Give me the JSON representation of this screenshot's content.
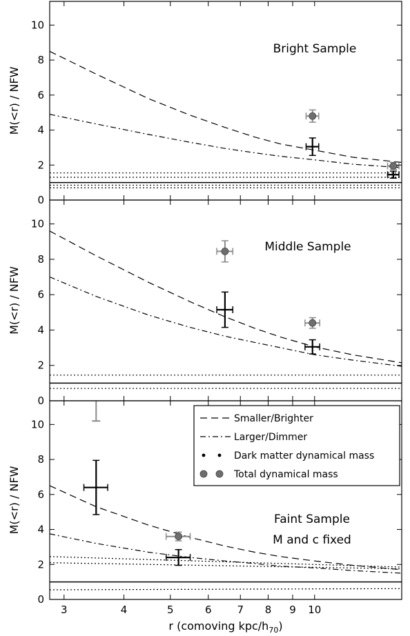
{
  "figure": {
    "xlabel_prefix": "r (comoving kpc/h",
    "xlabel_sub": "70",
    "xlabel_suffix": ")",
    "xscale": "log",
    "xlim": [
      2.8,
      15.2
    ],
    "xticks": [
      {
        "value": 3,
        "label": "3"
      },
      {
        "value": 4,
        "label": "4"
      },
      {
        "value": 5,
        "label": "5"
      },
      {
        "value": 6,
        "label": "6"
      },
      {
        "value": 7,
        "label": "7"
      },
      {
        "value": 8,
        "label": "8"
      },
      {
        "value": 9,
        "label": "9"
      },
      {
        "value": 10,
        "label": "10"
      }
    ]
  },
  "legend": {
    "placement": "top-right",
    "panel": 2,
    "entries": [
      {
        "label": "Smaller/Brighter",
        "style": "dashed"
      },
      {
        "label": "Larger/Dimmer",
        "style": "dashdot"
      },
      {
        "label": "Dark matter dynamical mass",
        "style": "black-cross"
      },
      {
        "label": "Total dynamical mass",
        "style": "gray-circle"
      }
    ]
  },
  "colors": {
    "dark_matter": "#000000",
    "total": "#6e6e6e",
    "total_error": "#8a8a8a"
  },
  "chart_data": [
    {
      "type": "scatter",
      "panel": "bright",
      "title": "Bright Sample",
      "subtitle": "",
      "ylabel": "M(<r) / NFW",
      "ylim": [
        0,
        11
      ],
      "yticks": [
        0,
        2,
        4,
        6,
        8,
        10
      ],
      "curves": {
        "smaller_brighter": {
          "style": "dashed",
          "x": [
            2.8,
            3.5,
            4.5,
            5.5,
            6.5,
            7.5,
            8.5,
            10,
            12,
            15.2
          ],
          "y": [
            8.5,
            7.2,
            5.8,
            4.85,
            4.15,
            3.6,
            3.2,
            2.85,
            2.45,
            2.15
          ]
        },
        "larger_dimmer": {
          "style": "dashdot",
          "x": [
            2.8,
            3.5,
            4.5,
            5.5,
            6.5,
            7.5,
            8.5,
            10,
            12,
            15.2
          ],
          "y": [
            4.9,
            4.35,
            3.75,
            3.3,
            2.95,
            2.7,
            2.5,
            2.3,
            2.05,
            1.85
          ]
        }
      },
      "reference_lines": [
        {
          "style": "solid",
          "y": 1.0
        },
        {
          "style": "dotted",
          "y": [
            1.55,
            1.55
          ]
        },
        {
          "style": "dotted",
          "y": [
            1.3,
            1.3
          ]
        },
        {
          "style": "dotted",
          "y": [
            0.85,
            0.85
          ]
        },
        {
          "style": "dotted",
          "y": [
            0.7,
            0.7
          ]
        }
      ],
      "dark_matter": [
        {
          "x": 9.9,
          "y": 3.05,
          "xerr": 0.3,
          "yerr": 0.5
        },
        {
          "x": 14.6,
          "y": 1.45,
          "xerr": 0.4,
          "yerr": 0.2
        }
      ],
      "total": [
        {
          "x": 9.9,
          "y": 4.8,
          "xerr": 0.3,
          "yerr": 0.35
        },
        {
          "x": 14.6,
          "y": 1.95,
          "xerr": 0.4,
          "yerr": 0.2
        }
      ]
    },
    {
      "type": "scatter",
      "panel": "middle",
      "title": "Middle Sample",
      "subtitle": "",
      "ylabel": "M(<r) / NFW",
      "ylim": [
        0,
        11
      ],
      "yticks": [
        0,
        2,
        4,
        6,
        8,
        10
      ],
      "curves": {
        "smaller_brighter": {
          "style": "dashed",
          "x": [
            2.8,
            3.5,
            4.5,
            5.5,
            6.5,
            7.5,
            8.5,
            10,
            12,
            15.2
          ],
          "y": [
            9.6,
            8.2,
            6.7,
            5.6,
            4.75,
            4.1,
            3.6,
            3.05,
            2.6,
            2.15
          ]
        },
        "larger_dimmer": {
          "style": "dashdot",
          "x": [
            2.8,
            3.5,
            4.5,
            5.5,
            6.5,
            7.5,
            8.5,
            10,
            12,
            15.2
          ],
          "y": [
            7.0,
            5.9,
            4.85,
            4.15,
            3.65,
            3.3,
            3.0,
            2.6,
            2.3,
            1.95
          ]
        }
      },
      "reference_lines": [
        {
          "style": "solid",
          "y": 1.0
        },
        {
          "style": "dotted",
          "y": [
            1.45,
            1.45
          ]
        },
        {
          "style": "dotted",
          "y": [
            0.7,
            0.7
          ]
        }
      ],
      "dark_matter": [
        {
          "x": 6.5,
          "y": 5.15,
          "xerr": 0.25,
          "yerr": 1.0
        },
        {
          "x": 9.9,
          "y": 3.05,
          "xerr": 0.35,
          "yerr": 0.4
        }
      ],
      "total": [
        {
          "x": 6.5,
          "y": 8.45,
          "xerr": 0.25,
          "yerr": 0.6
        },
        {
          "x": 9.9,
          "y": 4.4,
          "xerr": 0.35,
          "yerr": 0.3
        }
      ]
    },
    {
      "type": "scatter",
      "panel": "faint",
      "title": "Faint Sample",
      "subtitle": "M and c fixed",
      "ylabel": "M(<r) / NFW",
      "ylim": [
        0,
        11
      ],
      "yticks": [
        0,
        2,
        4,
        6,
        8,
        10
      ],
      "curves": {
        "smaller_brighter": {
          "style": "dashed",
          "x": [
            2.8,
            3.5,
            4.5,
            5.5,
            6.5,
            7.5,
            8.5,
            10,
            12,
            15.2
          ],
          "y": [
            6.5,
            5.3,
            4.25,
            3.55,
            3.05,
            2.7,
            2.45,
            2.2,
            1.95,
            1.7
          ]
        },
        "larger_dimmer": {
          "style": "dashdot",
          "x": [
            2.8,
            3.5,
            4.5,
            5.5,
            6.5,
            7.5,
            8.5,
            10,
            12,
            15.2
          ],
          "y": [
            3.75,
            3.2,
            2.7,
            2.4,
            2.2,
            2.05,
            1.9,
            1.8,
            1.65,
            1.5
          ]
        }
      },
      "reference_lines": [
        {
          "style": "solid",
          "y": 1.0
        },
        {
          "style": "dotted",
          "y": [
            2.45,
            1.85
          ]
        },
        {
          "style": "dotted",
          "y": [
            2.1,
            1.75
          ]
        },
        {
          "style": "dotted",
          "y": [
            0.55,
            0.62
          ]
        }
      ],
      "dark_matter": [
        {
          "x": 3.5,
          "y": 6.4,
          "xerr": 0.2,
          "yerr": 1.55
        },
        {
          "x": 5.2,
          "y": 2.4,
          "xerr": 0.3,
          "yerr": 0.45
        }
      ],
      "total": [
        {
          "x": 5.2,
          "y": 3.6,
          "xerr": 0.3,
          "yerr": 0.25
        }
      ],
      "offscale_total_error": [
        {
          "x": 3.5,
          "y_low": 10.2
        }
      ]
    }
  ]
}
